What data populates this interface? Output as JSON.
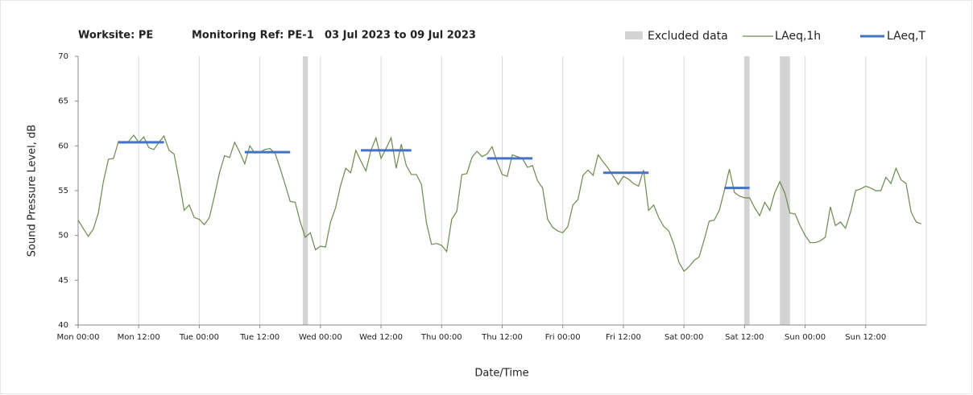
{
  "chart_data": {
    "type": "line",
    "title_parts": [
      "Worksite: PE",
      "Monitoring Ref: PE-1",
      "03 Jul 2023 to 09 Jul 2023"
    ],
    "xlabel": "Date/Time",
    "ylabel": "Sound Pressure Level, dB",
    "xlim": [
      0,
      168
    ],
    "ylim": [
      40,
      70
    ],
    "yticks": [
      40,
      45,
      50,
      55,
      60,
      65,
      70
    ],
    "xticks": [
      {
        "value": 0,
        "label": "Mon 00:00"
      },
      {
        "value": 12,
        "label": "Mon 12:00"
      },
      {
        "value": 24,
        "label": "Tue 00:00"
      },
      {
        "value": 36,
        "label": "Tue 12:00"
      },
      {
        "value": 48,
        "label": "Wed 00:00"
      },
      {
        "value": 60,
        "label": "Wed 12:00"
      },
      {
        "value": 72,
        "label": "Thu 00:00"
      },
      {
        "value": 84,
        "label": "Thu 12:00"
      },
      {
        "value": 96,
        "label": "Fri 00:00"
      },
      {
        "value": 108,
        "label": "Fri 12:00"
      },
      {
        "value": 120,
        "label": "Sat 00:00"
      },
      {
        "value": 132,
        "label": "Sat 12:00"
      },
      {
        "value": 144,
        "label": "Sun 00:00"
      },
      {
        "value": 156,
        "label": "Sun 12:00"
      }
    ],
    "grid": "x",
    "excluded": {
      "name": "Excluded data",
      "color": "#d3d3d3",
      "ranges": [
        [
          44.5,
          45.5
        ],
        [
          132,
          133
        ],
        [
          139,
          141
        ]
      ]
    },
    "series": [
      {
        "name": "LAeq,1h",
        "color": "#6b8a4e",
        "x": [
          0,
          1,
          2,
          3,
          4,
          5,
          6,
          7,
          8,
          9,
          10,
          11,
          12,
          13,
          14,
          15,
          16,
          17,
          18,
          19,
          20,
          21,
          22,
          23,
          24,
          25,
          26,
          27,
          28,
          29,
          30,
          31,
          32,
          33,
          34,
          35,
          36,
          37,
          38,
          39,
          40,
          41,
          42,
          43,
          44,
          45,
          46,
          47,
          48,
          49,
          50,
          51,
          52,
          53,
          54,
          55,
          56,
          57,
          58,
          59,
          60,
          61,
          62,
          63,
          64,
          65,
          66,
          67,
          68,
          69,
          70,
          71,
          72,
          73,
          74,
          75,
          76,
          77,
          78,
          79,
          80,
          81,
          82,
          83,
          84,
          85,
          86,
          87,
          88,
          89,
          90,
          91,
          92,
          93,
          94,
          95,
          96,
          97,
          98,
          99,
          100,
          101,
          102,
          103,
          104,
          105,
          106,
          107,
          108,
          109,
          110,
          111,
          112,
          113,
          114,
          115,
          116,
          117,
          118,
          119,
          120,
          121,
          122,
          123,
          124,
          125,
          126,
          127,
          128,
          129,
          130,
          131,
          132,
          133,
          134,
          135,
          136,
          137,
          138,
          139,
          140,
          141,
          142,
          143,
          144,
          145,
          146,
          147,
          148,
          149,
          150,
          151,
          152,
          153,
          154,
          155,
          156,
          157,
          158,
          159,
          160,
          161,
          162,
          163,
          164,
          165,
          166,
          167
        ],
        "values": [
          51.7,
          50.8,
          49.9,
          50.7,
          52.5,
          56,
          58.5,
          58.6,
          60.5,
          60.3,
          60.5,
          61.2,
          60.4,
          61,
          59.8,
          59.6,
          60.4,
          61.1,
          59.5,
          59.1,
          56.2,
          52.8,
          53.4,
          52,
          51.8,
          51.2,
          52,
          54.4,
          57,
          58.9,
          58.7,
          60.4,
          59.3,
          58,
          60,
          59.2,
          59.3,
          59.6,
          59.7,
          59.2,
          57.5,
          55.7,
          53.8,
          53.7,
          51.5,
          49.8,
          50.3,
          48.4,
          48.8,
          48.7,
          51.5,
          53.1,
          55.6,
          57.5,
          57,
          59.5,
          58.3,
          57.2,
          59.5,
          60.9,
          58.6,
          59.7,
          60.9,
          57.5,
          60.2,
          57.8,
          56.8,
          56.8,
          55.7,
          51.4,
          49,
          49.1,
          48.9,
          48.2,
          51.8,
          52.7,
          56.8,
          56.9,
          58.7,
          59.4,
          58.8,
          59.1,
          59.9,
          58.2,
          56.8,
          56.6,
          59,
          58.8,
          58.6,
          57.6,
          57.8,
          56.1,
          55.3,
          51.8,
          50.9,
          50.5,
          50.3,
          51,
          53.4,
          54,
          56.7,
          57.3,
          56.7,
          59,
          58.2,
          57.5,
          56.6,
          55.7,
          56.6,
          56.3,
          55.8,
          55.5,
          57.3,
          52.8,
          53.4,
          52,
          51,
          50.5,
          49,
          47,
          46,
          46.5,
          47.2,
          47.6,
          49.5,
          51.6,
          51.7,
          52.8,
          55,
          57.4,
          54.8,
          54.4,
          54.2,
          54.2,
          53.1,
          52.2,
          53.7,
          52.8,
          54.8,
          56,
          54.7,
          52.5,
          52.4,
          51.1,
          50,
          49.2,
          49.2,
          49.4,
          49.8,
          53.2,
          51.1,
          51.5,
          50.8,
          52.6,
          55,
          55.2,
          55.5,
          55.3,
          55,
          55,
          56.5,
          55.8,
          57.5,
          56.2,
          55.8,
          52.6,
          51.5,
          51.3
        ]
      },
      {
        "name": "LAeq,T",
        "color": "#4472c4",
        "segments": [
          {
            "start": 8,
            "end": 17,
            "value": 60.4
          },
          {
            "start": 33,
            "end": 42,
            "value": 59.3
          },
          {
            "start": 56,
            "end": 66,
            "value": 59.5
          },
          {
            "start": 81,
            "end": 90,
            "value": 58.6
          },
          {
            "start": 104,
            "end": 113,
            "value": 57.0
          },
          {
            "start": 128,
            "end": 133,
            "value": 55.3
          }
        ]
      }
    ]
  }
}
